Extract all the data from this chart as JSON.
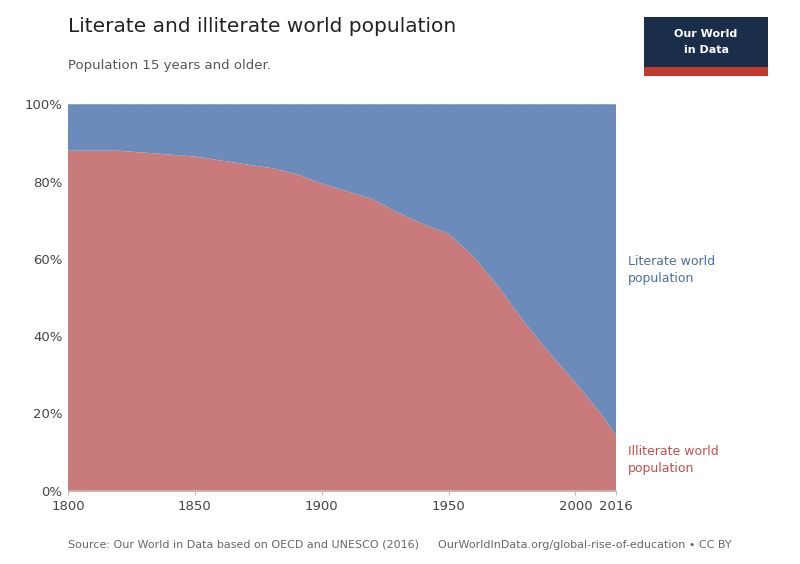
{
  "title": "Literate and illiterate world population",
  "subtitle": "Population 15 years and older.",
  "source_left": "Source: Our World in Data based on OECD and UNESCO (2016)",
  "source_right": "OurWorldInData.org/global-rise-of-education • CC BY",
  "years": [
    1800,
    1820,
    1830,
    1840,
    1850,
    1860,
    1870,
    1880,
    1890,
    1900,
    1910,
    1920,
    1930,
    1940,
    1950,
    1960,
    1970,
    1980,
    1990,
    2000,
    2010,
    2016
  ],
  "illiterate": [
    0.88,
    0.88,
    0.875,
    0.87,
    0.865,
    0.855,
    0.845,
    0.835,
    0.82,
    0.795,
    0.775,
    0.755,
    0.72,
    0.69,
    0.665,
    0.605,
    0.525,
    0.435,
    0.355,
    0.28,
    0.2,
    0.143
  ],
  "literate_color": "#6b8cba",
  "illiterate_color": "#c97b7b",
  "background_color": "#ffffff",
  "grid_color": "#cccccc",
  "label_literate": "Literate world\npopulation",
  "label_illiterate": "Illiterate world\npopulation",
  "label_literate_color": "#4a6fa5",
  "label_illiterate_color": "#c0504d",
  "xlim": [
    1800,
    2016
  ],
  "ylim": [
    0,
    1
  ],
  "xticks": [
    1800,
    1850,
    1900,
    1950,
    2000,
    2016
  ],
  "yticks": [
    0,
    0.2,
    0.4,
    0.6,
    0.8,
    1.0
  ],
  "owid_box_color": "#1a2e4a",
  "owid_red": "#c0392b"
}
